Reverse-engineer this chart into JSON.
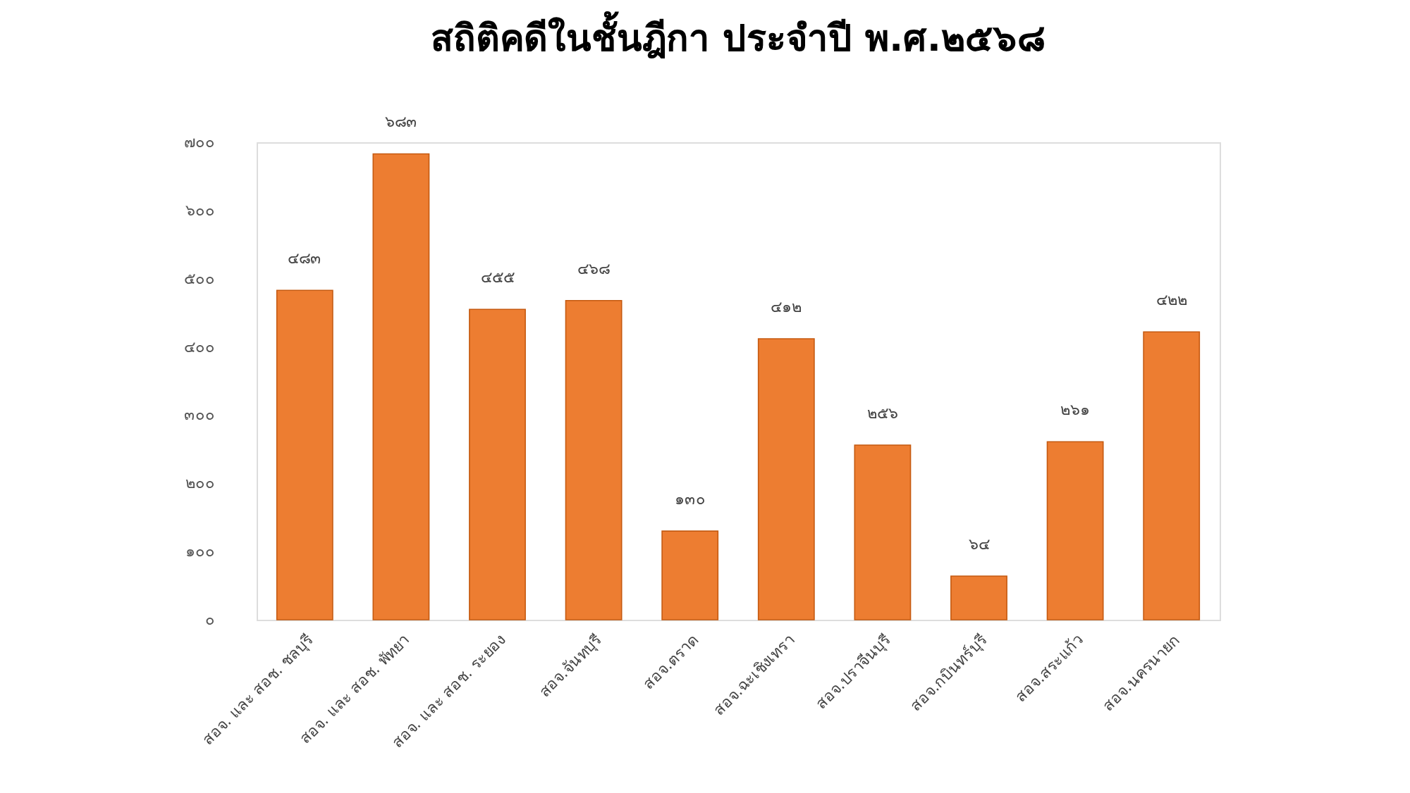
{
  "chart_data": {
    "type": "bar",
    "title": "สถิติคดีในชั้นฎีกา ประจำปี พ.ศ.๒๕๖๘",
    "categories": [
      "สอจ. และ สอช. ชลบุรี",
      "สอจ. และ สอช. พัทยา",
      "สอจ. และ สอช. ระยอง",
      "สอจ.จันทบุรี",
      "สอจ.ตราด",
      "สอจ.ฉะเชิงเทรา",
      "สอจ.ปราจีนบุรี",
      "สอจ.กบินทร์บุรี",
      "สอจ.สระแก้ว",
      "สอจ.นครนายก"
    ],
    "values": [
      483,
      683,
      455,
      468,
      130,
      412,
      256,
      64,
      261,
      422
    ],
    "value_labels": [
      "๔๘๓",
      "๖๘๓",
      "๔๕๕",
      "๔๖๘",
      "๑๓๐",
      "๔๑๒",
      "๒๕๖",
      "๖๔",
      "๒๖๑",
      "๔๒๒"
    ],
    "color": "#ed7d31",
    "ylim": [
      0,
      700
    ],
    "yticks": [
      {
        "value": 0,
        "label": "๐"
      },
      {
        "value": 100,
        "label": "๑๐๐"
      },
      {
        "value": 200,
        "label": "๒๐๐"
      },
      {
        "value": 300,
        "label": "๓๐๐"
      },
      {
        "value": 400,
        "label": "๔๐๐"
      },
      {
        "value": 500,
        "label": "๕๐๐"
      },
      {
        "value": 600,
        "label": "๖๐๐"
      },
      {
        "value": 700,
        "label": "๗๐๐"
      }
    ],
    "grid": false
  }
}
